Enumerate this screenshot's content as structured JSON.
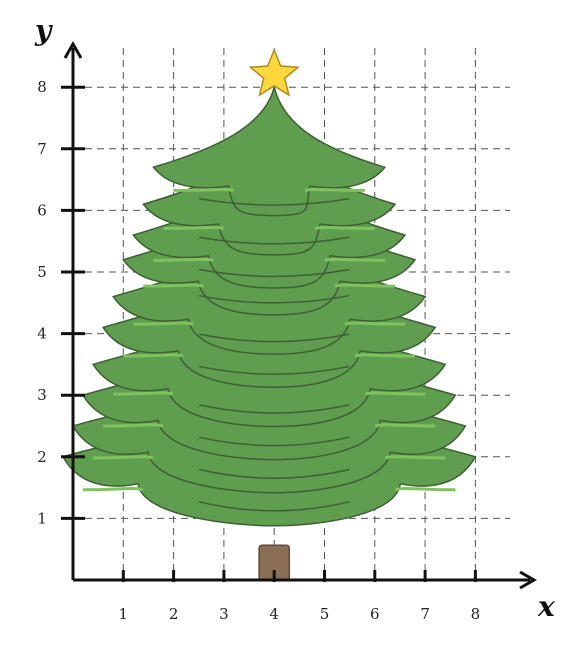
{
  "axes": {
    "x_label": "x",
    "y_label": "y",
    "x_ticks": [
      "1",
      "2",
      "3",
      "4",
      "5",
      "6",
      "7",
      "8"
    ],
    "y_ticks": [
      "1",
      "2",
      "3",
      "4",
      "5",
      "6",
      "7",
      "8"
    ]
  },
  "grid": "dashed",
  "tree": {
    "apex": [
      4,
      8
    ],
    "tiers_top_to_bottom": [
      {
        "left": 1.6,
        "right": 6.2,
        "tip_y": 6.7
      },
      {
        "left": 1.4,
        "right": 6.4,
        "tip_y": 6.1
      },
      {
        "left": 1.2,
        "right": 6.6,
        "tip_y": 5.6
      },
      {
        "left": 1.0,
        "right": 6.8,
        "tip_y": 5.2
      },
      {
        "left": 0.8,
        "right": 7.0,
        "tip_y": 4.6
      },
      {
        "left": 0.6,
        "right": 7.2,
        "tip_y": 4.1
      },
      {
        "left": 0.4,
        "right": 7.4,
        "tip_y": 3.5
      },
      {
        "left": 0.2,
        "right": 7.6,
        "tip_y": 3.0
      },
      {
        "left": 0.0,
        "right": 7.8,
        "tip_y": 2.5
      },
      {
        "left": -0.2,
        "right": 8.0,
        "tip_y": 2.0
      }
    ],
    "trunk": {
      "x_from": 3.7,
      "x_to": 4.3,
      "y_from": 0,
      "y_to": 0.5
    },
    "star": {
      "center": [
        4,
        8.2
      ]
    },
    "colors": {
      "foliage": "#5f9e4e",
      "highlight": "#7fc35f",
      "outline": "#3f5e36",
      "trunk": "#8b6f55",
      "star": "#ffd93b"
    }
  }
}
